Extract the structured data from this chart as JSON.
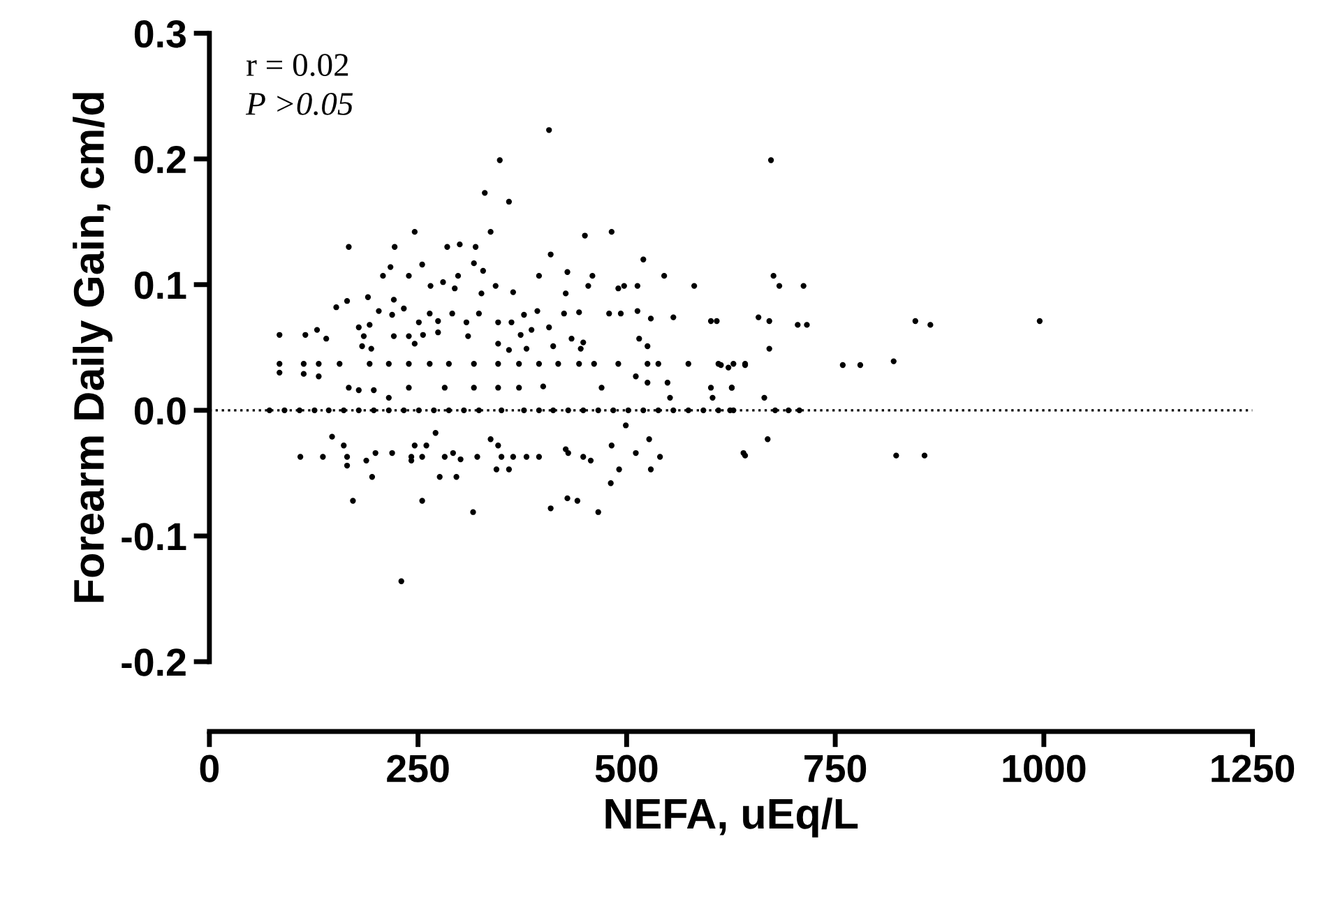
{
  "chart_data": {
    "type": "scatter",
    "xlabel": "NEFA, uEq/L",
    "ylabel": "Forearm Daily Gain, cm/d",
    "annotations": [
      "r = 0.02",
      "P >0.05"
    ],
    "xlim": [
      0,
      1250
    ],
    "xticks": [
      0,
      250,
      500,
      750,
      1000,
      1250
    ],
    "ylim": [
      -0.2,
      0.3
    ],
    "yticks": [
      -0.2,
      -0.1,
      {
        "value": 0,
        "label": "0.0"
      },
      0.1,
      0.2,
      0.3
    ],
    "ref_lines": [
      {
        "axis": "y",
        "value": 0,
        "label": null,
        "color": "#000000",
        "line_style": "dotted"
      }
    ],
    "marker": "circle",
    "grid": false,
    "legend": false,
    "series": [
      {
        "color": "#000000",
        "x": [
          407,
          348,
          330,
          359,
          246,
          337,
          167,
          222,
          285,
          300,
          319,
          409,
          450,
          482,
          520,
          545,
          581,
          217,
          255,
          208,
          239,
          298,
          317,
          328,
          395,
          429,
          459,
          454,
          490,
          513,
          497,
          152,
          165,
          190,
          221,
          265,
          280,
          294,
          326,
          343,
          364,
          427,
          443,
          479,
          493,
          513,
          529,
          556,
          601,
          608,
          84,
          115,
          129,
          140,
          179,
          192,
          203,
          219,
          233,
          251,
          264,
          274,
          291,
          308,
          323,
          346,
          362,
          377,
          393,
          407,
          425,
          221,
          239,
          256,
          274,
          310,
          346,
          373,
          386,
          185,
          183,
          246,
          434,
          448,
          515,
          525,
          194,
          380,
          412,
          359,
          445,
          84,
          113,
          131,
          156,
          192,
          215,
          239,
          264,
          287,
          317,
          346,
          371,
          395,
          418,
          443,
          461,
          490,
          525,
          538,
          574,
          610,
          628,
          642,
          84,
          113,
          131,
          167,
          179,
          197,
          215,
          239,
          282,
          317,
          346,
          371,
          400,
          470,
          511,
          525,
          549,
          552,
          601,
          603,
          626,
          72,
          90,
          108,
          126,
          143,
          161,
          179,
          197,
          215,
          233,
          251,
          269,
          287,
          305,
          323,
          350,
          377,
          395,
          412,
          430,
          448,
          466,
          484,
          502,
          520,
          538,
          556,
          574,
          592,
          610,
          628,
          499,
          147,
          161,
          109,
          136,
          165,
          165,
          188,
          199,
          219,
          242,
          242,
          246,
          260,
          255,
          271,
          282,
          292,
          301,
          321,
          337,
          346,
          350,
          364,
          380,
          395,
          427,
          430,
          448,
          457,
          482,
          511,
          527,
          540,
          640,
          529,
          491,
          195,
          276,
          296,
          344,
          359,
          481,
          172,
          255,
          316,
          409,
          429,
          441,
          466,
          230,
          673,
          676,
          683,
          712,
          658,
          671,
          705,
          716,
          846,
          864,
          995,
          671,
          613,
          622,
          642,
          759,
          780,
          820,
          626,
          665,
          624,
          678,
          694,
          707,
          669,
          642,
          823,
          857
        ],
        "values": [
          0.223,
          0.199,
          0.173,
          0.166,
          0.142,
          0.142,
          0.13,
          0.13,
          0.13,
          0.132,
          0.13,
          0.124,
          0.139,
          0.142,
          0.12,
          0.107,
          0.099,
          0.114,
          0.116,
          0.107,
          0.107,
          0.107,
          0.117,
          0.111,
          0.107,
          0.11,
          0.107,
          0.099,
          0.097,
          0.099,
          0.099,
          0.082,
          0.087,
          0.09,
          0.088,
          0.099,
          0.102,
          0.097,
          0.093,
          0.099,
          0.094,
          0.093,
          0.078,
          0.077,
          0.077,
          0.079,
          0.073,
          0.074,
          0.071,
          0.071,
          0.06,
          0.06,
          0.064,
          0.057,
          0.066,
          0.068,
          0.079,
          0.076,
          0.081,
          0.07,
          0.077,
          0.071,
          0.077,
          0.07,
          0.077,
          0.07,
          0.07,
          0.076,
          0.079,
          0.066,
          0.077,
          0.059,
          0.059,
          0.06,
          0.062,
          0.059,
          0.053,
          0.06,
          0.064,
          0.059,
          0.051,
          0.053,
          0.057,
          0.054,
          0.057,
          0.051,
          0.049,
          0.049,
          0.051,
          0.048,
          0.049,
          0.037,
          0.037,
          0.037,
          0.037,
          0.037,
          0.037,
          0.037,
          0.037,
          0.037,
          0.037,
          0.037,
          0.037,
          0.037,
          0.037,
          0.037,
          0.037,
          0.037,
          0.037,
          0.037,
          0.037,
          0.037,
          0.037,
          0.037,
          0.03,
          0.029,
          0.027,
          0.018,
          0.016,
          0.016,
          0.01,
          0.018,
          0.018,
          0.018,
          0.018,
          0.018,
          0.019,
          0.018,
          0.027,
          0.022,
          0.022,
          0.01,
          0.018,
          0.01,
          0.018,
          0,
          0,
          0,
          0,
          0,
          0,
          0,
          0,
          0,
          0,
          0,
          0,
          0,
          0,
          0,
          0,
          0,
          0,
          0,
          0,
          0,
          0,
          0,
          0,
          0,
          0,
          0,
          0,
          0,
          0,
          0,
          -0.012,
          -0.021,
          -0.028,
          -0.037,
          -0.037,
          -0.037,
          -0.044,
          -0.04,
          -0.034,
          -0.034,
          -0.037,
          -0.04,
          -0.028,
          -0.028,
          -0.037,
          -0.018,
          -0.037,
          -0.034,
          -0.039,
          -0.037,
          -0.023,
          -0.028,
          -0.037,
          -0.037,
          -0.037,
          -0.037,
          -0.031,
          -0.034,
          -0.037,
          -0.04,
          -0.028,
          -0.034,
          -0.023,
          -0.037,
          -0.034,
          -0.047,
          -0.047,
          -0.053,
          -0.053,
          -0.053,
          -0.047,
          -0.047,
          -0.058,
          -0.072,
          -0.072,
          -0.081,
          -0.078,
          -0.07,
          -0.072,
          -0.081,
          -0.136,
          0.199,
          0.107,
          0.099,
          0.099,
          0.074,
          0.071,
          0.068,
          0.068,
          0.071,
          0.068,
          0.071,
          0.049,
          0.036,
          0.034,
          0.036,
          0.036,
          0.036,
          0.039,
          0.018,
          0.01,
          0,
          0,
          0,
          0,
          -0.023,
          -0.036,
          -0.036,
          -0.036
        ]
      }
    ]
  }
}
